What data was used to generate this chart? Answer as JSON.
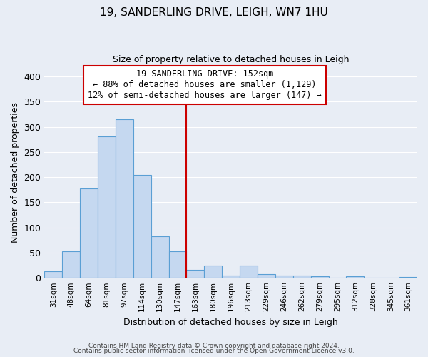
{
  "title_line1": "19, SANDERLING DRIVE, LEIGH, WN7 1HU",
  "title_line2": "Size of property relative to detached houses in Leigh",
  "xlabel": "Distribution of detached houses by size in Leigh",
  "ylabel": "Number of detached properties",
  "categories": [
    "31sqm",
    "48sqm",
    "64sqm",
    "81sqm",
    "97sqm",
    "114sqm",
    "130sqm",
    "147sqm",
    "163sqm",
    "180sqm",
    "196sqm",
    "213sqm",
    "229sqm",
    "246sqm",
    "262sqm",
    "279sqm",
    "295sqm",
    "312sqm",
    "328sqm",
    "345sqm",
    "361sqm"
  ],
  "values": [
    13,
    53,
    177,
    281,
    315,
    204,
    82,
    53,
    16,
    25,
    5,
    25,
    8,
    5,
    5,
    3,
    0,
    3,
    0,
    0,
    2
  ],
  "bar_color": "#c5d8f0",
  "bar_edge_color": "#5a9fd4",
  "vline_x_idx": 7.5,
  "vline_color": "#cc0000",
  "box_text_line1": "19 SANDERLING DRIVE: 152sqm",
  "box_text_line2": "← 88% of detached houses are smaller (1,129)",
  "box_text_line3": "12% of semi-detached houses are larger (147) →",
  "box_color": "#ffffff",
  "box_edge_color": "#cc0000",
  "ylim": [
    0,
    420
  ],
  "yticks": [
    0,
    50,
    100,
    150,
    200,
    250,
    300,
    350,
    400
  ],
  "background_color": "#e8edf5",
  "grid_color": "#ffffff",
  "footnote_line1": "Contains HM Land Registry data © Crown copyright and database right 2024.",
  "footnote_line2": "Contains public sector information licensed under the Open Government Licence v3.0."
}
